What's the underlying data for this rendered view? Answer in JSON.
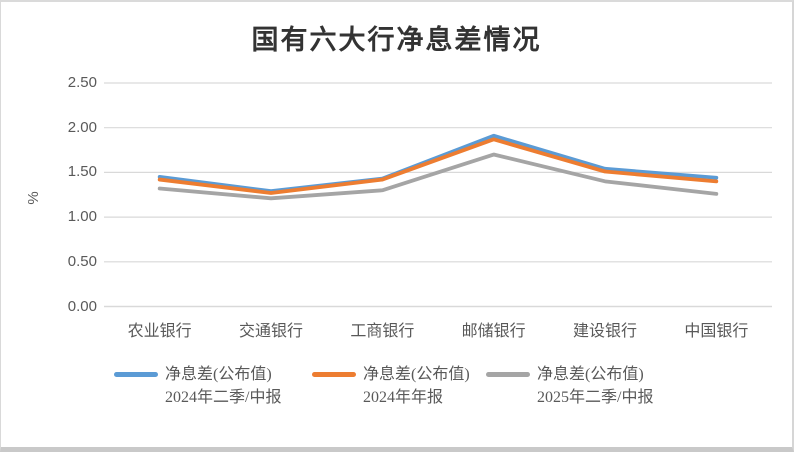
{
  "chart_data": {
    "type": "line",
    "title": "国有六大行净息差情况",
    "ylabel": "%",
    "xlabel": "",
    "ylim": [
      0,
      2.5
    ],
    "ytick_step": 0.5,
    "ytick_labels": [
      "0.00",
      "0.50",
      "1.00",
      "1.50",
      "2.00",
      "2.50"
    ],
    "grid": true,
    "legend_position": "bottom",
    "categories": [
      "农业银行",
      "交通银行",
      "工商银行",
      "邮储银行",
      "建设银行",
      "中国银行"
    ],
    "series": [
      {
        "name": "净息差(公布值)",
        "period": "2024年二季/中报",
        "color": "#5B9BD5",
        "values": [
          1.45,
          1.29,
          1.43,
          1.91,
          1.54,
          1.44
        ]
      },
      {
        "name": "净息差(公布值)",
        "period": "2024年年报",
        "color": "#ED7D31",
        "values": [
          1.42,
          1.27,
          1.42,
          1.87,
          1.51,
          1.4
        ]
      },
      {
        "name": "净息差(公布值)",
        "period": "2025年二季/中报",
        "color": "#A5A5A5",
        "values": [
          1.32,
          1.21,
          1.3,
          1.7,
          1.4,
          1.26
        ]
      }
    ],
    "gridline_color": "#D9D9D9",
    "text_color": "#595959",
    "title_color": "#333333"
  }
}
